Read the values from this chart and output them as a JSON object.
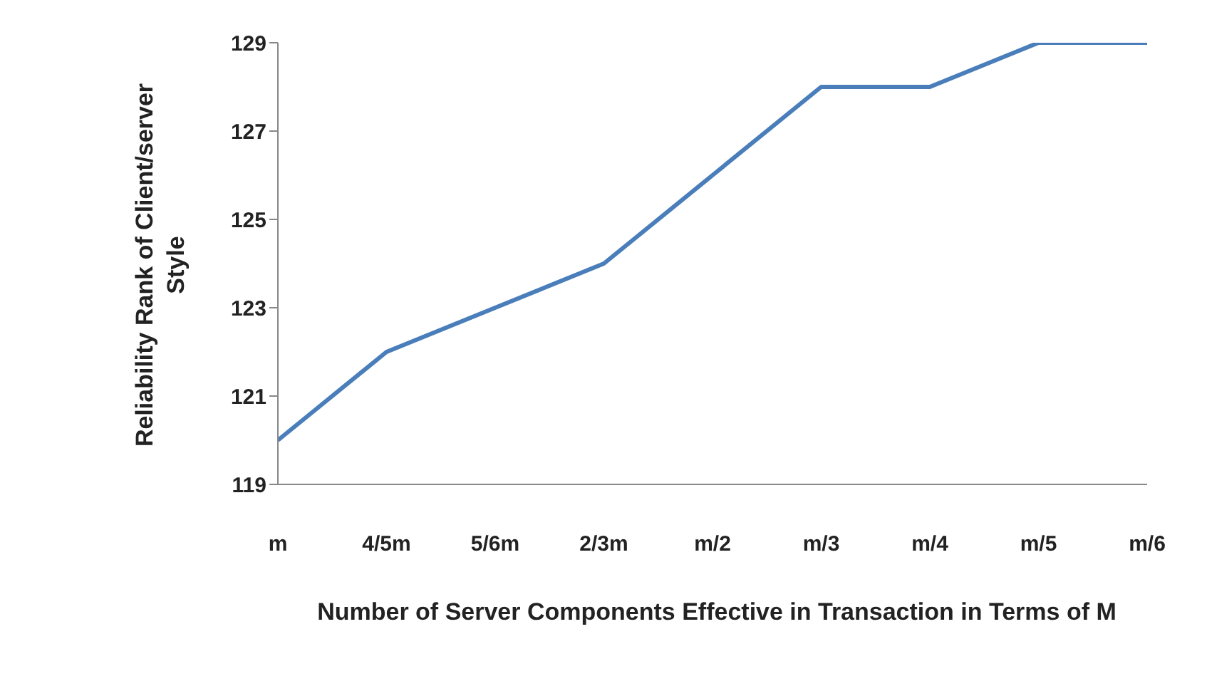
{
  "chart_data": {
    "type": "line",
    "xlabel": "Number of Server Components Effective in Transaction in Terms of M",
    "ylabel": "Reliability Rank of Client/server Style",
    "categories": [
      "m",
      "4/5m",
      "5/6m",
      "2/3m",
      "m/2",
      "m/3",
      "m/4",
      "m/5",
      "m/6"
    ],
    "series": [
      {
        "color": "#4a7ebb",
        "values": [
          120,
          122,
          123,
          124,
          126,
          128,
          128,
          129,
          129
        ]
      }
    ],
    "ylim": [
      119,
      129
    ],
    "yticks": [
      119,
      121,
      123,
      125,
      127,
      129
    ],
    "grid": false,
    "legend": false,
    "marker": "none",
    "line_style": "solid"
  }
}
